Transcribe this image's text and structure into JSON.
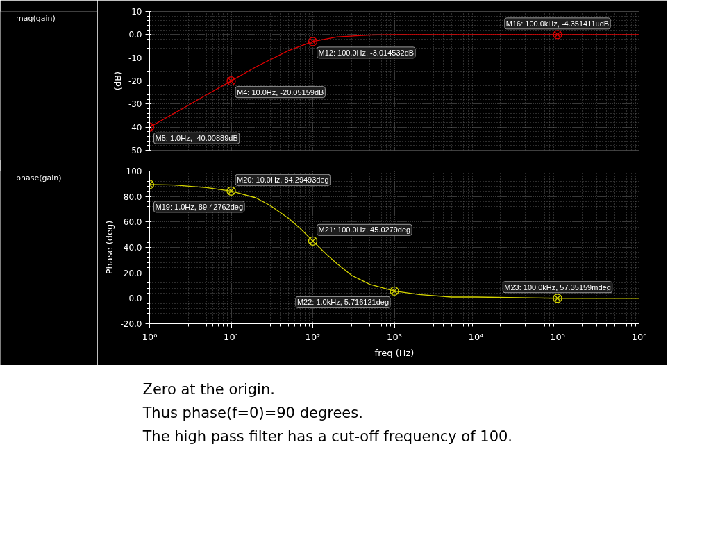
{
  "chart_data": [
    {
      "type": "line",
      "ylabel": "(dB)",
      "x": [
        1,
        2,
        5,
        10,
        20,
        50,
        100,
        200,
        500,
        1000,
        10000,
        100000,
        1000000
      ],
      "series": [
        {
          "name": "mag(gain)",
          "color": "#e00000",
          "values": [
            -40.00889,
            -34,
            -26,
            -20.05159,
            -14,
            -7,
            -3.014532,
            -1,
            -0.2,
            0,
            0,
            -4.351411e-06,
            0
          ]
        }
      ],
      "xlim": [
        1,
        1000000
      ],
      "xticks": [
        1,
        10,
        100,
        1000,
        10000,
        100000,
        1000000
      ],
      "ylim": [
        -50,
        10
      ],
      "yticks": [
        -50,
        -40,
        -30,
        -20,
        -10,
        {
          "value": 0,
          "label": "0.0"
        },
        10
      ],
      "log": "x",
      "grid": true,
      "legend": "left",
      "tick_labels": "y",
      "annotations": [
        {
          "text": "M5: 1.0Hz, -40.00889dB",
          "x": 1,
          "y": -40.00889
        },
        {
          "text": "M4: 10.0Hz, -20.05159dB",
          "x": 10,
          "y": -20.05159
        },
        {
          "text": "M12: 100.0Hz, -3.014532dB",
          "x": 100,
          "y": -3.014532
        },
        {
          "text": "M16: 100.0kHz, -4.351411udB",
          "x": 100000,
          "y": -4.351411e-06
        }
      ]
    },
    {
      "type": "line",
      "xlabel": "freq (Hz)",
      "ylabel": "Phase (deg)",
      "x": [
        1,
        2,
        5,
        10,
        20,
        30,
        50,
        70,
        100,
        150,
        200,
        300,
        500,
        1000,
        2000,
        5000,
        10000,
        100000,
        1000000
      ],
      "series": [
        {
          "name": "phase(gain)",
          "color": "#d4d400",
          "values": [
            89.42762,
            89,
            87,
            84.29493,
            79,
            73,
            63,
            55,
            45.0279,
            34,
            27,
            18,
            11,
            5.716121,
            3,
            1,
            1,
            0.05735159,
            0
          ]
        }
      ],
      "xlim": [
        1,
        1000000
      ],
      "xticks": [
        {
          "value": 1,
          "label": "10⁰"
        },
        {
          "value": 10,
          "label": "10¹"
        },
        {
          "value": 100,
          "label": "10²"
        },
        {
          "value": 1000,
          "label": "10³"
        },
        {
          "value": 10000,
          "label": "10⁴"
        },
        {
          "value": 100000,
          "label": "10⁵"
        },
        {
          "value": 1000000,
          "label": "10⁶"
        }
      ],
      "ylim": [
        -20,
        100
      ],
      "yticks": [
        {
          "value": -20,
          "label": "-20.0"
        },
        {
          "value": 0,
          "label": "0.0"
        },
        {
          "value": 20,
          "label": "20.0"
        },
        {
          "value": 40,
          "label": "40.0"
        },
        {
          "value": 60,
          "label": "60.0"
        },
        {
          "value": 80,
          "label": "80.0"
        },
        100
      ],
      "log": "x",
      "grid": true,
      "legend": "left",
      "annotations": [
        {
          "text": "M19: 1.0Hz, 89.42762deg",
          "x": 1,
          "y": 89.42762
        },
        {
          "text": "M20: 10.0Hz, 84.29493deg",
          "x": 10,
          "y": 84.29493
        },
        {
          "text": "M21: 100.0Hz, 45.0279deg",
          "x": 100,
          "y": 45.0279
        },
        {
          "text": "M22: 1.0kHz, 5.716121deg",
          "x": 1000,
          "y": 5.716121
        },
        {
          "text": "M23: 100.0kHz, 57.35159mdeg",
          "x": 100000,
          "y": 0.05735159
        },
        "Zero at the origin.",
        "Thus phase(f=0)=90 degrees.",
        "The high pass filter has a cut-off frequency of 100."
      ]
    }
  ]
}
